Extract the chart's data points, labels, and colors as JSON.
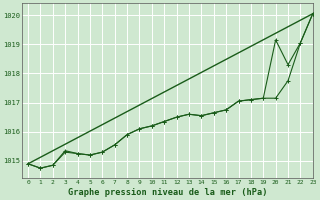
{
  "title": "Graphe pression niveau de la mer (hPa)",
  "bg_color": "#cce8d4",
  "grid_color": "#aaccaa",
  "line_color": "#1a5c1a",
  "xlim": [
    -0.5,
    23
  ],
  "ylim": [
    1014.4,
    1020.4
  ],
  "yticks": [
    1015,
    1016,
    1017,
    1018,
    1019,
    1020
  ],
  "xticks": [
    0,
    1,
    2,
    3,
    4,
    5,
    6,
    7,
    8,
    9,
    10,
    11,
    12,
    13,
    14,
    15,
    16,
    17,
    18,
    19,
    20,
    21,
    22,
    23
  ],
  "smooth_x": [
    0,
    1,
    2,
    3,
    4,
    5,
    6,
    7,
    8,
    9,
    10,
    11,
    12,
    13,
    14,
    15,
    16,
    17,
    18,
    19,
    20,
    21,
    22,
    23
  ],
  "smooth_y": [
    1014.9,
    1014.75,
    1014.85,
    1015.3,
    1015.25,
    1015.2,
    1015.3,
    1015.55,
    1015.9,
    1016.1,
    1016.2,
    1016.35,
    1016.5,
    1016.6,
    1016.55,
    1016.65,
    1016.75,
    1017.05,
    1017.1,
    1017.15,
    1017.15,
    1017.75,
    1019.05,
    1020.05
  ],
  "marker_x": [
    0,
    1,
    2,
    3,
    4,
    5,
    6,
    7,
    8,
    9,
    10,
    11,
    12,
    13,
    14,
    15,
    16,
    17,
    18,
    19,
    20,
    21,
    22,
    23
  ],
  "marker_y": [
    1014.9,
    1014.75,
    1014.85,
    1015.35,
    1015.25,
    1015.2,
    1015.3,
    1015.55,
    1015.9,
    1016.1,
    1016.2,
    1016.35,
    1016.5,
    1016.6,
    1016.55,
    1016.65,
    1016.75,
    1017.05,
    1017.1,
    1017.15,
    1019.15,
    1018.3,
    1019.05,
    1020.05
  ],
  "trend_x": [
    0,
    23
  ],
  "trend_y": [
    1014.9,
    1020.05
  ]
}
